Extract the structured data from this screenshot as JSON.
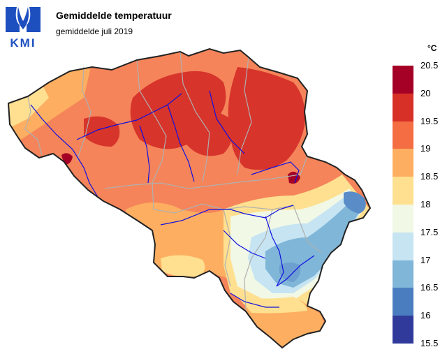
{
  "header": {
    "logo_text": "KMI",
    "title": "Gemiddelde temperatuur",
    "subtitle": "gemiddelde juli 2019"
  },
  "legend": {
    "unit": "°C",
    "bins": [
      {
        "label": "20.5",
        "color": "#a50026"
      },
      {
        "label": "20",
        "color": "#d73027"
      },
      {
        "label": "19.5",
        "color": "#f46d43"
      },
      {
        "label": "19",
        "color": "#fdae61"
      },
      {
        "label": "18.5",
        "color": "#fee090"
      },
      {
        "label": "18",
        "color": "#f1f8e6"
      },
      {
        "label": "17.5",
        "color": "#c6e4f2"
      },
      {
        "label": "17",
        "color": "#80b6d8"
      },
      {
        "label": "16.5",
        "color": "#4a7dc0"
      },
      {
        "label": "16",
        "color": "#2f3a9a"
      }
    ],
    "bottom_label": "15.5"
  },
  "map": {
    "colors": {
      "background_fill": "#f5845a",
      "hot": "#d7342b",
      "hottest": "#a50026",
      "warm": "#fdae61",
      "mild": "#fee090",
      "neutral": "#f1f8e6",
      "cool": "#c6e4f2",
      "cold": "#80b6d8",
      "colder": "#5a8cc8",
      "river": "#1010e0",
      "province_border": "#b0b0b0",
      "country_border": "#222222"
    }
  }
}
